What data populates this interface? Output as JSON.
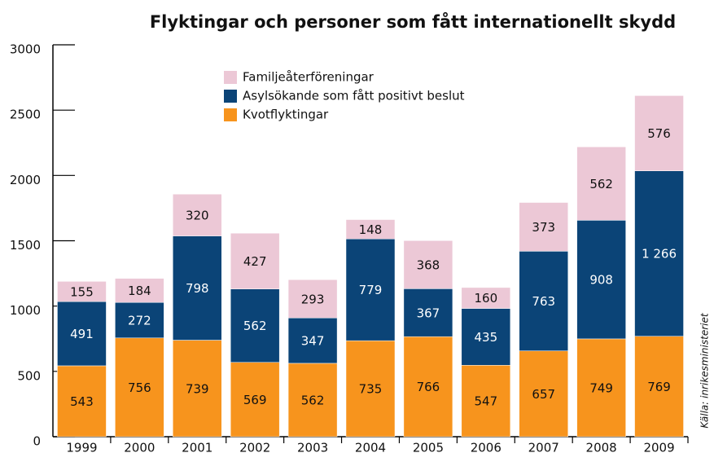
{
  "chart_data": {
    "type": "stacked_bar",
    "title": "Flyktingar och personer som fått internationellt skydd",
    "source": "Källa: inrikesministeriet",
    "categories": [
      "1999",
      "2000",
      "2001",
      "2002",
      "2003",
      "2004",
      "2005",
      "2006",
      "2007",
      "2008",
      "2009"
    ],
    "series": [
      {
        "name": "Kvotflyktingar",
        "color": "#f7941d",
        "values": [
          543,
          756,
          739,
          569,
          562,
          735,
          766,
          547,
          657,
          749,
          769
        ]
      },
      {
        "name": "Asylsökande som fått positivt beslut",
        "color": "#0b4477",
        "values": [
          491,
          272,
          798,
          562,
          347,
          779,
          367,
          435,
          763,
          908,
          1266
        ],
        "value_labels": [
          "491",
          "272",
          "798",
          "562",
          "347",
          "779",
          "367",
          "435",
          "763",
          "908",
          "1 266"
        ]
      },
      {
        "name": "Familjeåterföreningar",
        "color": "#ecc8d6",
        "values": [
          155,
          184,
          320,
          427,
          293,
          148,
          368,
          160,
          373,
          562,
          576
        ]
      }
    ],
    "ylim": [
      0,
      3000
    ],
    "yticks": [
      0,
      500,
      1000,
      1500,
      2000,
      2500,
      3000
    ]
  }
}
